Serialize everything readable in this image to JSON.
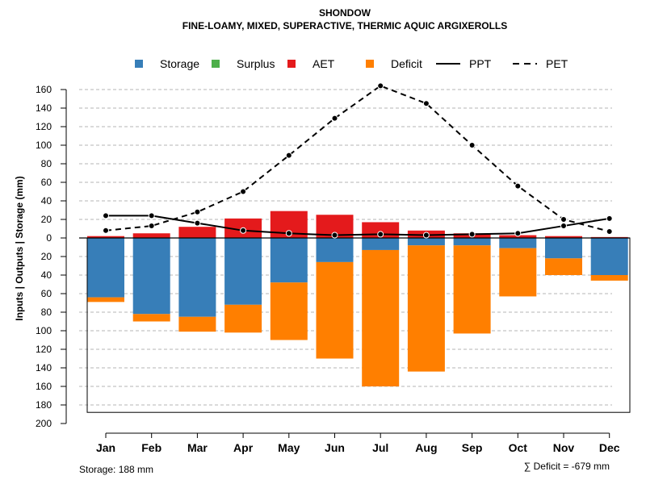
{
  "chart_data": {
    "type": "bar",
    "title": "SHONDOW",
    "subtitle": "FINE-LOAMY, MIXED, SUPERACTIVE, THERMIC AQUIC ARGIXEROLLS",
    "ylabel": "Inputs | Outputs | Storage     (mm)",
    "ylim": [
      -200,
      170
    ],
    "y_ticks": [
      160,
      140,
      120,
      100,
      80,
      60,
      40,
      20,
      0,
      -20,
      -40,
      -60,
      -80,
      -100,
      -120,
      -140,
      -160,
      -180,
      -200
    ],
    "y_tick_labels": [
      "160",
      "140",
      "120",
      "100",
      "80",
      "60",
      "40",
      "20",
      "0",
      "20",
      "40",
      "60",
      "80",
      "100",
      "120",
      "140",
      "160",
      "180",
      "200"
    ],
    "categories": [
      "Jan",
      "Feb",
      "Mar",
      "Apr",
      "May",
      "Jun",
      "Jul",
      "Aug",
      "Sep",
      "Oct",
      "Nov",
      "Dec"
    ],
    "legend": [
      {
        "key": "storage",
        "label": "Storage",
        "kind": "box",
        "color": "#377eb8"
      },
      {
        "key": "surplus",
        "label": "Surplus",
        "kind": "box",
        "color": "#4daf4a"
      },
      {
        "key": "aet",
        "label": "AET",
        "kind": "box",
        "color": "#e41a1c"
      },
      {
        "key": "deficit",
        "label": "Deficit",
        "kind": "box",
        "color": "#ff7f00"
      },
      {
        "key": "ppt",
        "label": "PPT",
        "kind": "solid-line",
        "color": "#000000"
      },
      {
        "key": "pet",
        "label": "PET",
        "kind": "dashed-line",
        "color": "#000000"
      }
    ],
    "series": [
      {
        "name": "AET",
        "color": "#e41a1c",
        "values": [
          2,
          5,
          12,
          21,
          29,
          25,
          17,
          8,
          5,
          3,
          2,
          1
        ]
      },
      {
        "name": "Surplus",
        "color": "#4daf4a",
        "values": [
          0,
          0,
          0,
          0,
          0,
          0,
          0,
          0,
          0,
          0,
          0,
          0
        ]
      },
      {
        "name": "Storage",
        "color": "#377eb8",
        "values": [
          64,
          82,
          85,
          72,
          48,
          26,
          13,
          8,
          8,
          11,
          22,
          40
        ]
      },
      {
        "name": "Deficit",
        "color": "#ff7f00",
        "values": [
          5,
          8,
          16,
          30,
          62,
          104,
          147,
          136,
          95,
          52,
          18,
          6
        ]
      },
      {
        "name": "PPT",
        "color": "#000000",
        "style": "solid",
        "values": [
          24,
          24,
          16,
          8,
          5,
          3,
          4,
          3,
          4,
          5,
          13,
          21
        ]
      },
      {
        "name": "PET",
        "color": "#000000",
        "style": "dashed",
        "values": [
          8,
          13,
          28,
          50,
          89,
          129,
          164,
          145,
          100,
          56,
          20,
          7
        ]
      }
    ],
    "grid": true,
    "legend_position": "top"
  },
  "footer": {
    "storage_note": "Storage: 188 mm",
    "deficit_note": "∑ Deficit = -679 mm"
  }
}
